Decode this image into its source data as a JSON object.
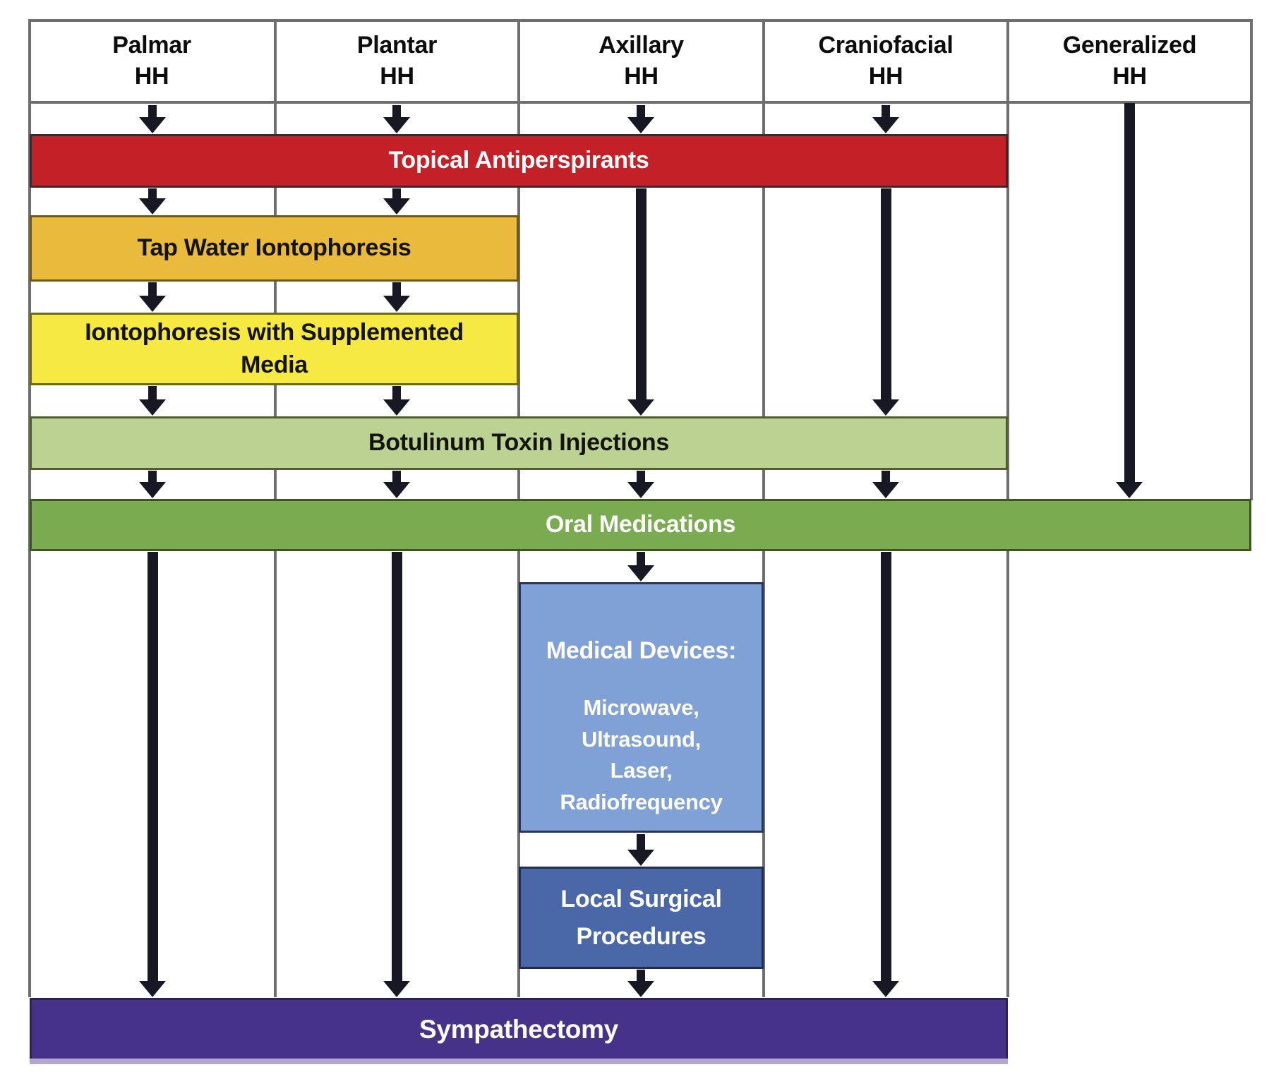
{
  "columns": [
    {
      "name": "Palmar",
      "type": "HH"
    },
    {
      "name": "Plantar",
      "type": "HH"
    },
    {
      "name": "Axillary",
      "type": "HH"
    },
    {
      "name": "Craniofacial",
      "type": "HH"
    },
    {
      "name": "Generalized",
      "type": "HH"
    }
  ],
  "treatments": {
    "topical": {
      "label": "Topical Antiperspirants",
      "color": "#c32127"
    },
    "tap_water": {
      "label": "Tap Water Iontophoresis",
      "color": "#eaba3c"
    },
    "ionto_media": {
      "lines": [
        "Iontophoresis with Supplemented",
        "Media"
      ],
      "color": "#f6e941"
    },
    "botulinum": {
      "label": "Botulinum Toxin Injections",
      "color": "#bcd293"
    },
    "oral": {
      "label": "Oral Medications",
      "color": "#7aab51"
    },
    "medical_devices": {
      "title": "Medical Devices:",
      "items": [
        "Microwave,",
        "Ultrasound,",
        "Laser,",
        "Radiofrequency"
      ],
      "color": "#7fa1d5"
    },
    "local_surgical": {
      "lines": [
        "Local Surgical",
        "Procedures"
      ],
      "color": "#4a67a8"
    },
    "sympathectomy": {
      "label": "Sympathectomy",
      "color": "#463289"
    }
  },
  "colors": {
    "grid": "#6e6e6e",
    "arrow": "#181824",
    "strip": "#b3a6cf"
  }
}
